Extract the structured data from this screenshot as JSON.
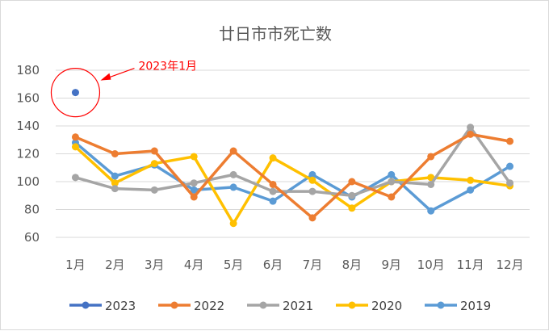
{
  "chart_data": {
    "type": "line",
    "title": "廿日市市死亡数",
    "xlabel": "",
    "ylabel": "",
    "categories": [
      "1月",
      "2月",
      "3月",
      "4月",
      "5月",
      "6月",
      "7月",
      "8月",
      "9月",
      "10月",
      "11月",
      "12月"
    ],
    "ylim": [
      60,
      180
    ],
    "yticks": [
      60,
      80,
      100,
      120,
      140,
      160,
      180
    ],
    "grid": true,
    "legend_position": "bottom",
    "series": [
      {
        "name": "2023",
        "color": "#4472c4",
        "values": [
          164,
          null,
          null,
          null,
          null,
          null,
          null,
          null,
          null,
          null,
          null,
          null
        ]
      },
      {
        "name": "2022",
        "color": "#ed7d31",
        "values": [
          132,
          120,
          122,
          89,
          122,
          98,
          74,
          100,
          89,
          118,
          134,
          129
        ]
      },
      {
        "name": "2021",
        "color": "#a5a5a5",
        "values": [
          103,
          95,
          94,
          99,
          105,
          93,
          93,
          90,
          100,
          98,
          139,
          99
        ]
      },
      {
        "name": "2020",
        "color": "#ffc000",
        "values": [
          125,
          99,
          113,
          118,
          70,
          117,
          101,
          81,
          100,
          103,
          101,
          97
        ]
      },
      {
        "name": "2019",
        "color": "#5b9bd5",
        "values": [
          128,
          104,
          112,
          94,
          96,
          86,
          105,
          89,
          105,
          79,
          94,
          111
        ]
      }
    ],
    "annotation": {
      "text": "2023年1月",
      "color": "#ff0000",
      "target_category": "1月",
      "target_value": 164
    }
  }
}
